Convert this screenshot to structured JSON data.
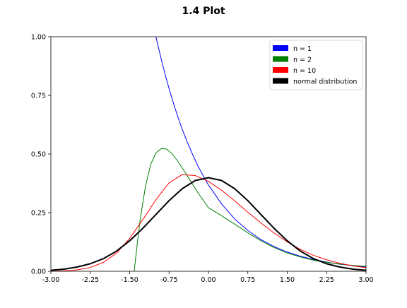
{
  "chart_data": {
    "type": "line",
    "title": "1.4 Plot",
    "xlabel": "",
    "ylabel": "",
    "xlim": [
      -3.0,
      3.0
    ],
    "ylim": [
      0.0,
      1.0
    ],
    "xticks": [
      "-3.00",
      "-2.25",
      "-1.50",
      "-0.75",
      "0.00",
      "0.75",
      "1.50",
      "2.25",
      "3.00"
    ],
    "yticks": [
      "0.00",
      "0.25",
      "0.50",
      "0.75",
      "1.00"
    ],
    "grid": false,
    "legend_position": "top-right",
    "series": [
      {
        "name": "n = 1",
        "color": "#0000ff",
        "linewidth": "thin",
        "points": [
          [
            -1.0,
            1.0
          ],
          [
            -0.9,
            0.905
          ],
          [
            -0.8,
            0.818
          ],
          [
            -0.7,
            0.741
          ],
          [
            -0.6,
            0.67
          ],
          [
            -0.5,
            0.606
          ],
          [
            -0.4,
            0.549
          ],
          [
            -0.3,
            0.497
          ],
          [
            -0.2,
            0.449
          ],
          [
            -0.1,
            0.407
          ],
          [
            0.0,
            0.368
          ],
          [
            0.25,
            0.287
          ],
          [
            0.5,
            0.223
          ],
          [
            0.75,
            0.174
          ],
          [
            1.0,
            0.135
          ],
          [
            1.25,
            0.105
          ],
          [
            1.5,
            0.082
          ],
          [
            1.75,
            0.064
          ],
          [
            2.0,
            0.05
          ],
          [
            2.25,
            0.039
          ],
          [
            2.5,
            0.03
          ],
          [
            2.75,
            0.024
          ],
          [
            3.0,
            0.018
          ]
        ]
      },
      {
        "name": "n = 2",
        "color": "#008000",
        "linewidth": "thin",
        "points": [
          [
            -1.414,
            0.0
          ],
          [
            -1.35,
            0.128
          ],
          [
            -1.3,
            0.221
          ],
          [
            -1.2,
            0.361
          ],
          [
            -1.1,
            0.455
          ],
          [
            -1.0,
            0.505
          ],
          [
            -0.9,
            0.523
          ],
          [
            -0.8,
            0.521
          ],
          [
            -0.7,
            0.503
          ],
          [
            -0.6,
            0.474
          ],
          [
            -0.5,
            0.441
          ],
          [
            -0.4,
            0.406
          ],
          [
            -0.3,
            0.37
          ],
          [
            -0.2,
            0.335
          ],
          [
            -0.1,
            0.303
          ],
          [
            0.0,
            0.271
          ],
          [
            0.25,
            0.237
          ],
          [
            0.5,
            0.201
          ],
          [
            0.75,
            0.164
          ],
          [
            1.0,
            0.13
          ],
          [
            1.25,
            0.101
          ],
          [
            1.5,
            0.078
          ],
          [
            1.75,
            0.061
          ],
          [
            2.0,
            0.047
          ],
          [
            2.25,
            0.038
          ],
          [
            2.5,
            0.031
          ],
          [
            2.75,
            0.025
          ],
          [
            3.0,
            0.021
          ]
        ]
      },
      {
        "name": "n = 10",
        "color": "#ff0000",
        "linewidth": "thin",
        "points": [
          [
            -3.0,
            0.0
          ],
          [
            -2.75,
            0.002
          ],
          [
            -2.5,
            0.006
          ],
          [
            -2.25,
            0.016
          ],
          [
            -2.0,
            0.038
          ],
          [
            -1.75,
            0.077
          ],
          [
            -1.5,
            0.14
          ],
          [
            -1.25,
            0.22
          ],
          [
            -1.0,
            0.305
          ],
          [
            -0.75,
            0.377
          ],
          [
            -0.5,
            0.412
          ],
          [
            -0.25,
            0.408
          ],
          [
            0.0,
            0.383
          ],
          [
            0.25,
            0.345
          ],
          [
            0.5,
            0.3
          ],
          [
            0.75,
            0.252
          ],
          [
            1.0,
            0.206
          ],
          [
            1.25,
            0.163
          ],
          [
            1.5,
            0.125
          ],
          [
            1.75,
            0.093
          ],
          [
            2.0,
            0.068
          ],
          [
            2.25,
            0.049
          ],
          [
            2.5,
            0.034
          ],
          [
            2.75,
            0.023
          ],
          [
            3.0,
            0.015
          ]
        ]
      },
      {
        "name": "normal distribution",
        "color": "#000000",
        "linewidth": "thick",
        "points": [
          [
            -3.0,
            0.004
          ],
          [
            -2.75,
            0.009
          ],
          [
            -2.5,
            0.018
          ],
          [
            -2.25,
            0.032
          ],
          [
            -2.0,
            0.054
          ],
          [
            -1.75,
            0.086
          ],
          [
            -1.5,
            0.13
          ],
          [
            -1.25,
            0.183
          ],
          [
            -1.0,
            0.242
          ],
          [
            -0.75,
            0.301
          ],
          [
            -0.5,
            0.352
          ],
          [
            -0.25,
            0.387
          ],
          [
            0.0,
            0.399
          ],
          [
            0.25,
            0.387
          ],
          [
            0.5,
            0.352
          ],
          [
            0.75,
            0.301
          ],
          [
            1.0,
            0.242
          ],
          [
            1.25,
            0.183
          ],
          [
            1.5,
            0.13
          ],
          [
            1.75,
            0.086
          ],
          [
            2.0,
            0.054
          ],
          [
            2.25,
            0.032
          ],
          [
            2.5,
            0.018
          ],
          [
            2.75,
            0.009
          ],
          [
            3.0,
            0.004
          ]
        ]
      }
    ]
  }
}
